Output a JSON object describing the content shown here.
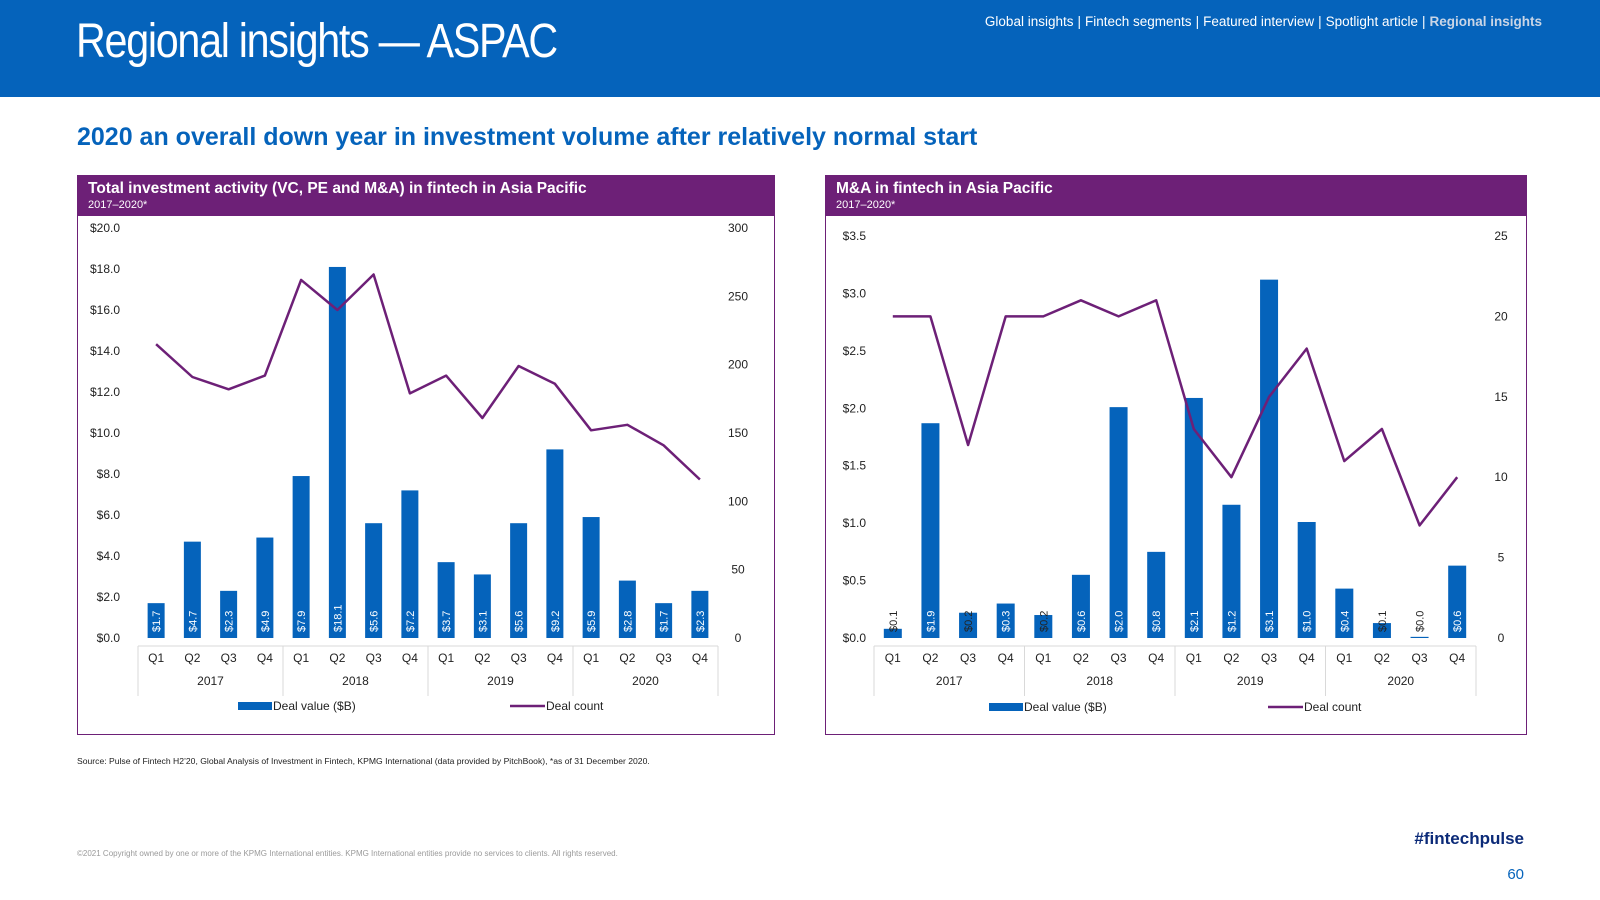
{
  "header": {
    "title": "Regional insights — ASPAC"
  },
  "nav": {
    "items": [
      "Global insights",
      "Fintech segments",
      "Featured interview",
      "Spotlight article",
      "Regional insights"
    ],
    "separator": "|",
    "active_index": 4
  },
  "headline": "2020 an overall down year in investment volume after relatively normal start",
  "colors": {
    "brand_blue": "#0563bb",
    "purple": "#6d2077",
    "bar_blue": "#0563bb",
    "line_purple": "#6d2077"
  },
  "chart_data": [
    {
      "type": "bar",
      "title": "Total investment activity (VC, PE and M&A) in fintech in Asia Pacific",
      "subtitle": "2017–2020*",
      "quarters": [
        "Q1",
        "Q2",
        "Q3",
        "Q4",
        "Q1",
        "Q2",
        "Q3",
        "Q4",
        "Q1",
        "Q2",
        "Q3",
        "Q4",
        "Q1",
        "Q2",
        "Q3",
        "Q4"
      ],
      "years": [
        "2017",
        "2018",
        "2019",
        "2020"
      ],
      "y_left_ticks": [
        "$0.0",
        "$2.0",
        "$4.0",
        "$6.0",
        "$8.0",
        "$10.0",
        "$12.0",
        "$14.0",
        "$16.0",
        "$18.0",
        "$20.0"
      ],
      "y_right_ticks": [
        "0",
        "50",
        "100",
        "150",
        "200",
        "250",
        "300"
      ],
      "ylim_left": [
        0,
        20
      ],
      "ylim_right": [
        0,
        300
      ],
      "series": [
        {
          "name": "Deal value ($B)",
          "type": "bar",
          "axis": "left",
          "values": [
            1.7,
            4.7,
            2.3,
            4.9,
            7.9,
            18.1,
            5.6,
            7.2,
            3.7,
            3.1,
            5.6,
            9.2,
            5.9,
            2.8,
            1.7,
            2.3
          ],
          "labels": [
            "$1.7",
            "$4.7",
            "$2.3",
            "$4.9",
            "$7.9",
            "$18.1",
            "$5.6",
            "$7.2",
            "$3.7",
            "$3.1",
            "$5.6",
            "$9.2",
            "$5.9",
            "$2.8",
            "$1.7",
            "$2.3"
          ]
        },
        {
          "name": "Deal count",
          "type": "line",
          "axis": "right",
          "values": [
            215,
            191,
            182,
            192,
            262,
            240,
            266,
            179,
            192,
            161,
            199,
            186,
            152,
            156,
            141,
            116
          ]
        }
      ],
      "legend": "bottom"
    },
    {
      "type": "bar",
      "title": "M&A in fintech in Asia Pacific",
      "subtitle": "2017–2020*",
      "quarters": [
        "Q1",
        "Q2",
        "Q3",
        "Q4",
        "Q1",
        "Q2",
        "Q3",
        "Q4",
        "Q1",
        "Q2",
        "Q3",
        "Q4",
        "Q1",
        "Q2",
        "Q3",
        "Q4"
      ],
      "years": [
        "2017",
        "2018",
        "2019",
        "2020"
      ],
      "y_left_ticks": [
        "$0.0",
        "$0.5",
        "$1.0",
        "$1.5",
        "$2.0",
        "$2.5",
        "$3.0",
        "$3.5"
      ],
      "y_right_ticks": [
        "0",
        "5",
        "10",
        "15",
        "20",
        "25"
      ],
      "ylim_left": [
        0,
        3.5
      ],
      "ylim_right": [
        0,
        25
      ],
      "series": [
        {
          "name": "Deal value ($B)",
          "type": "bar",
          "axis": "left",
          "values": [
            0.08,
            1.87,
            0.22,
            0.3,
            0.2,
            0.55,
            2.01,
            0.75,
            2.09,
            1.16,
            3.12,
            1.01,
            0.43,
            0.13,
            0.01,
            0.63
          ],
          "labels": [
            "$0.1",
            "$1.9",
            "$0.2",
            "$0.3",
            "$0.2",
            "$0.6",
            "$2.0",
            "$0.8",
            "$2.1",
            "$1.2",
            "$3.1",
            "$1.0",
            "$0.4",
            "$0.1",
            "$0.0",
            "$0.6"
          ]
        },
        {
          "name": "Deal count",
          "type": "line",
          "axis": "right",
          "values": [
            20,
            20,
            12,
            20,
            20,
            21,
            20,
            21,
            13,
            10,
            15,
            18,
            11,
            13,
            7,
            10
          ]
        }
      ],
      "legend": "bottom"
    }
  ],
  "source": "Source: Pulse of Fintech H2’20, Global Analysis of Investment in Fintech, KPMG International (data provided by PitchBook), *as of 31 December 2020.",
  "copyright": "©2021 Copyright owned by one or more of the KPMG International entities. KPMG International entities provide no services to clients. All rights reserved.",
  "hashtag": "#fintechpulse",
  "page_number": "60"
}
